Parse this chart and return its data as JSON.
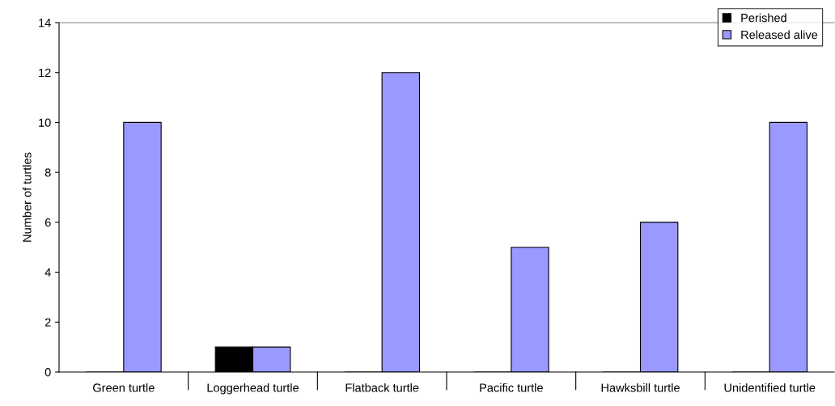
{
  "chart_data": {
    "type": "bar",
    "ylabel": "Number of turtles",
    "categories": [
      "Green turtle",
      "Loggerhead turtle",
      "Flatback turtle",
      "Pacific turtle",
      "Hawksbill turtle",
      "Unidentified turtle"
    ],
    "series": [
      {
        "name": "Perished",
        "color": "#000000",
        "values": [
          0,
          1,
          0,
          0,
          0,
          0
        ]
      },
      {
        "name": "Released alive",
        "color": "#9999ff",
        "values": [
          10,
          1,
          12,
          5,
          6,
          10
        ]
      }
    ],
    "ylim": [
      0,
      14
    ],
    "yticks": [
      0,
      2,
      4,
      6,
      8,
      10,
      12,
      14
    ],
    "grid": false,
    "legend": "top right"
  }
}
